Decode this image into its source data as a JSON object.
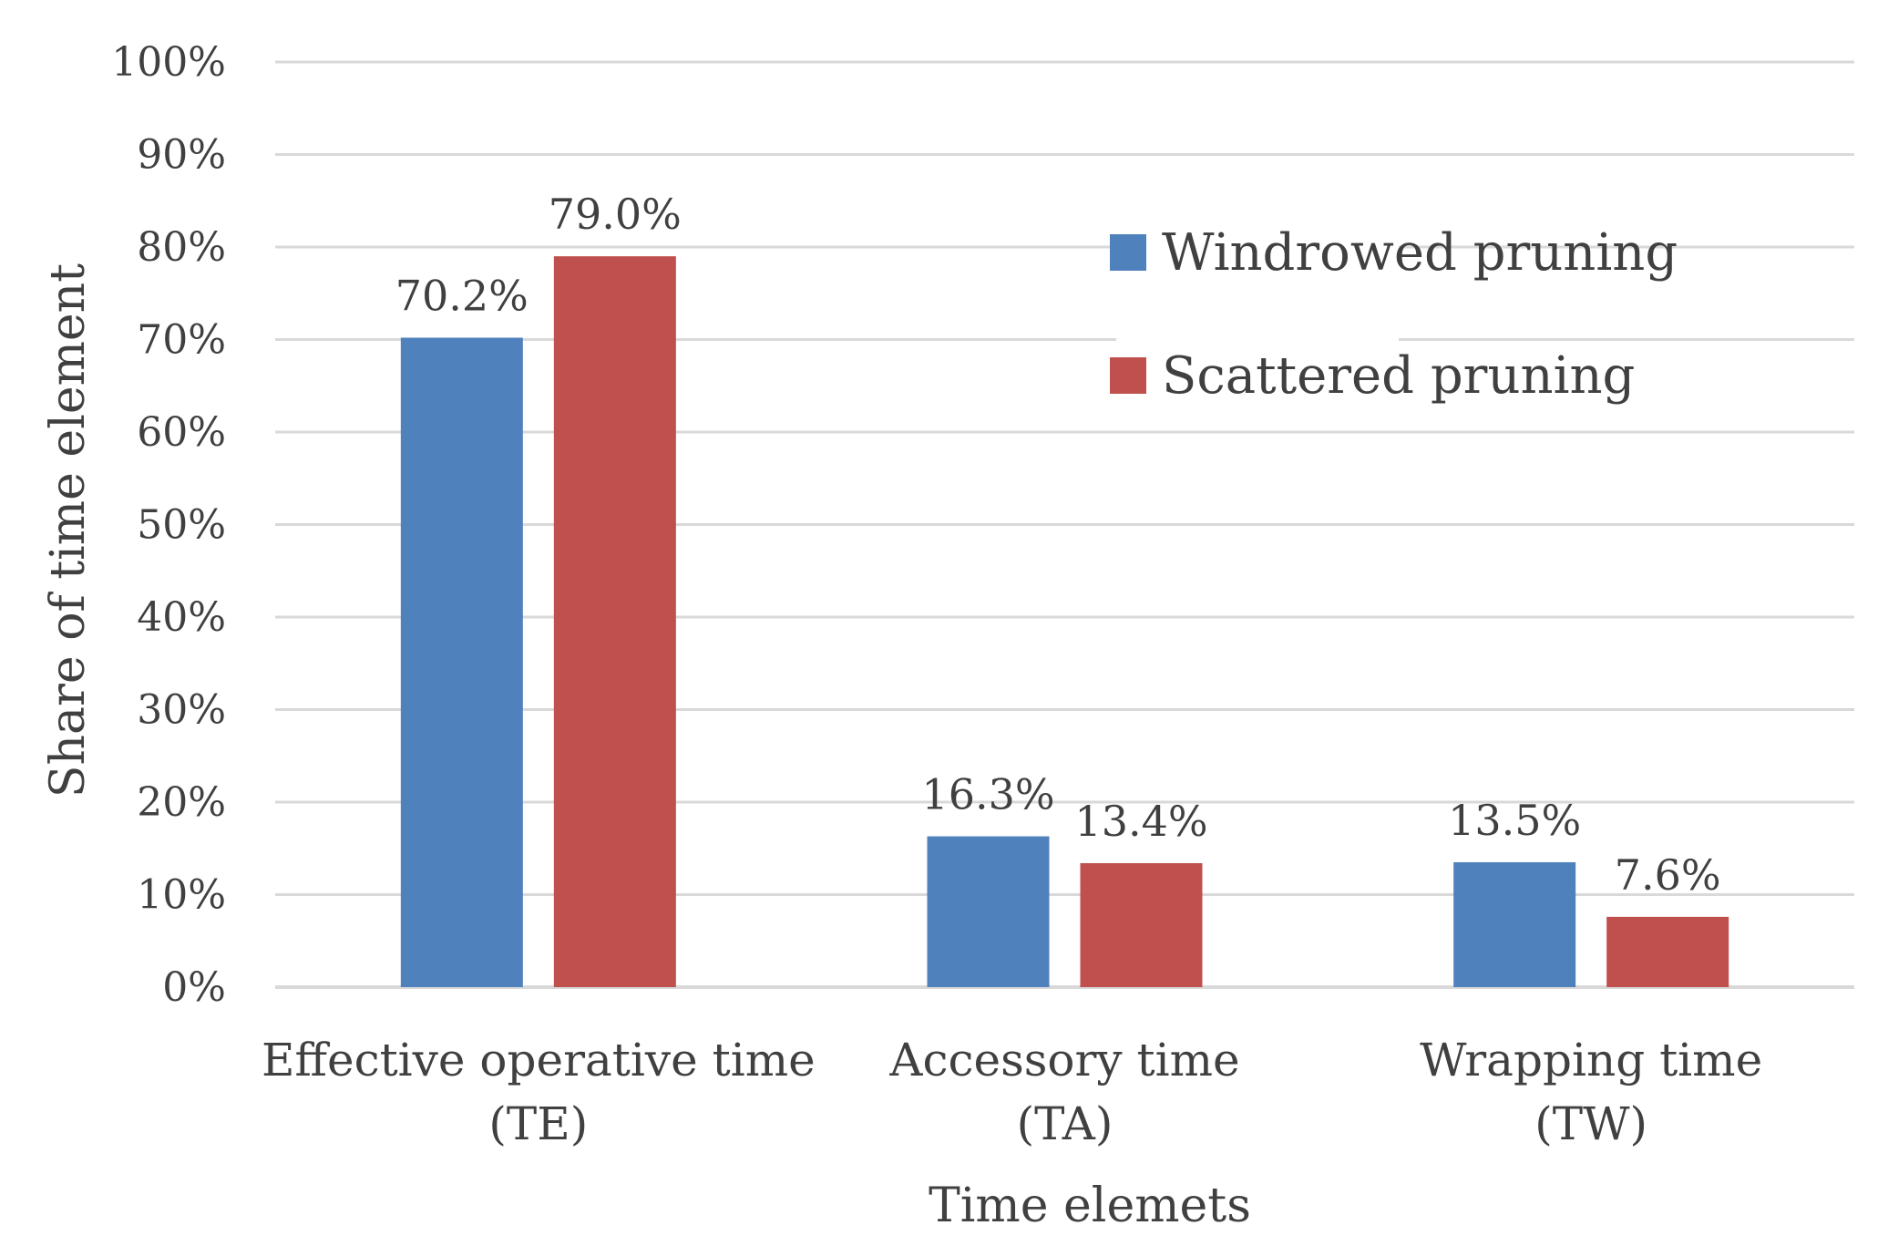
{
  "chart_data": {
    "type": "bar",
    "title": "",
    "xlabel": "Time elemets",
    "ylabel": "Share of time element",
    "ylim": [
      0,
      100
    ],
    "yticks": [
      "0%",
      "10%",
      "20%",
      "30%",
      "40%",
      "50%",
      "60%",
      "70%",
      "80%",
      "90%",
      "100%"
    ],
    "categories": [
      {
        "line1": "Effective operative time",
        "line2": "(TE)"
      },
      {
        "line1": "Accessory time",
        "line2": "(TA)"
      },
      {
        "line1": "Wrapping time",
        "line2": "(TW)"
      }
    ],
    "series": [
      {
        "name": "Windrowed pruning",
        "color": "#4f81bd",
        "values": [
          70.2,
          16.3,
          13.5
        ],
        "labels": [
          "70.2%",
          "16.3%",
          "13.5%"
        ]
      },
      {
        "name": "Scattered pruning",
        "color": "#c0504d",
        "values": [
          79.0,
          13.4,
          7.6
        ],
        "labels": [
          "79.0%",
          "13.4%",
          "7.6%"
        ]
      }
    ],
    "grid": true,
    "legend_position": "top-right"
  }
}
